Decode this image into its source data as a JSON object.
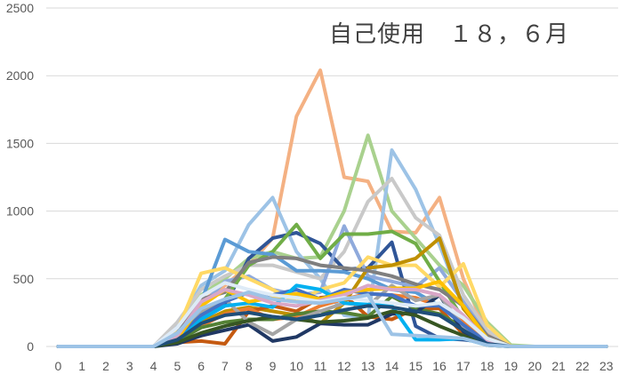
{
  "chart_data": {
    "type": "line",
    "title": "自己使用　１８，６月",
    "xlabel": "",
    "ylabel": "",
    "x": [
      0,
      1,
      2,
      3,
      4,
      5,
      6,
      7,
      8,
      9,
      10,
      11,
      12,
      13,
      14,
      15,
      16,
      17,
      18,
      19,
      20,
      21,
      22,
      23
    ],
    "ylim": [
      0,
      2500
    ],
    "yticks": [
      0,
      500,
      1000,
      1500,
      2000,
      2500
    ],
    "grid": "horizontal",
    "legend": "none",
    "series": [
      {
        "color": "#f4b183",
        "values": [
          0,
          0,
          0,
          0,
          0,
          120,
          330,
          450,
          600,
          800,
          1700,
          2040,
          1250,
          1220,
          850,
          840,
          1100,
          500,
          100,
          0,
          0,
          0,
          0,
          0
        ]
      },
      {
        "color": "#a9d18e",
        "values": [
          0,
          0,
          0,
          0,
          0,
          150,
          380,
          500,
          650,
          700,
          650,
          660,
          1000,
          1560,
          1000,
          800,
          600,
          450,
          180,
          10,
          0,
          0,
          0,
          0
        ]
      },
      {
        "color": "#9dc3e6",
        "values": [
          0,
          0,
          0,
          0,
          0,
          150,
          450,
          560,
          900,
          1100,
          700,
          500,
          230,
          210,
          1450,
          1160,
          750,
          300,
          60,
          0,
          0,
          0,
          0,
          0
        ]
      },
      {
        "color": "#c9c9c9",
        "values": [
          0,
          0,
          0,
          0,
          0,
          180,
          420,
          520,
          600,
          600,
          550,
          500,
          700,
          1070,
          1240,
          950,
          820,
          380,
          120,
          0,
          0,
          0,
          0,
          0
        ]
      },
      {
        "color": "#2f5597",
        "values": [
          0,
          0,
          0,
          0,
          0,
          50,
          200,
          300,
          650,
          800,
          840,
          760,
          570,
          580,
          770,
          150,
          60,
          50,
          30,
          0,
          0,
          0,
          0,
          0
        ]
      },
      {
        "color": "#8faadc",
        "values": [
          0,
          0,
          0,
          0,
          0,
          120,
          300,
          480,
          520,
          420,
          380,
          400,
          890,
          520,
          480,
          440,
          580,
          330,
          80,
          0,
          0,
          0,
          0,
          0
        ]
      },
      {
        "color": "#70ad47",
        "values": [
          0,
          0,
          0,
          0,
          0,
          90,
          250,
          350,
          600,
          700,
          900,
          650,
          830,
          830,
          850,
          760,
          480,
          200,
          40,
          0,
          0,
          0,
          0,
          0
        ]
      },
      {
        "color": "#5b9bd5",
        "values": [
          0,
          0,
          0,
          0,
          0,
          110,
          330,
          790,
          700,
          680,
          560,
          560,
          550,
          500,
          420,
          400,
          300,
          180,
          50,
          0,
          0,
          0,
          0,
          0
        ]
      },
      {
        "color": "#ffd966",
        "values": [
          0,
          0,
          0,
          0,
          0,
          120,
          540,
          580,
          500,
          420,
          330,
          420,
          470,
          660,
          600,
          600,
          440,
          610,
          160,
          0,
          0,
          0,
          0,
          0
        ]
      },
      {
        "color": "#bf9000",
        "values": [
          0,
          0,
          0,
          0,
          0,
          40,
          180,
          260,
          290,
          260,
          230,
          170,
          320,
          580,
          600,
          650,
          800,
          280,
          70,
          0,
          0,
          0,
          0,
          0
        ]
      },
      {
        "color": "#c55a11",
        "values": [
          0,
          0,
          0,
          0,
          0,
          30,
          40,
          20,
          260,
          300,
          260,
          360,
          380,
          220,
          200,
          280,
          280,
          90,
          20,
          0,
          0,
          0,
          0,
          0
        ]
      },
      {
        "color": "#ed7d31",
        "values": [
          0,
          0,
          0,
          0,
          0,
          60,
          150,
          240,
          280,
          200,
          220,
          300,
          350,
          390,
          380,
          360,
          300,
          180,
          50,
          0,
          0,
          0,
          0,
          0
        ]
      },
      {
        "color": "#548235",
        "values": [
          0,
          0,
          0,
          0,
          0,
          40,
          140,
          180,
          200,
          200,
          240,
          260,
          250,
          220,
          370,
          280,
          240,
          140,
          30,
          0,
          0,
          0,
          0,
          0
        ]
      },
      {
        "color": "#203864",
        "values": [
          0,
          0,
          0,
          0,
          0,
          20,
          80,
          120,
          160,
          40,
          70,
          170,
          160,
          160,
          240,
          250,
          380,
          110,
          20,
          0,
          0,
          0,
          0,
          0
        ]
      },
      {
        "color": "#7f7f7f",
        "values": [
          0,
          0,
          0,
          0,
          0,
          100,
          350,
          400,
          620,
          660,
          650,
          600,
          580,
          560,
          520,
          460,
          420,
          300,
          80,
          0,
          0,
          0,
          0,
          0
        ]
      },
      {
        "color": "#a5a5a5",
        "values": [
          0,
          0,
          0,
          0,
          0,
          90,
          260,
          350,
          180,
          90,
          200,
          260,
          320,
          300,
          450,
          340,
          380,
          150,
          40,
          0,
          0,
          0,
          0,
          0
        ]
      },
      {
        "color": "#4472c4",
        "values": [
          0,
          0,
          0,
          0,
          0,
          70,
          230,
          330,
          400,
          380,
          420,
          350,
          420,
          390,
          380,
          300,
          300,
          160,
          30,
          0,
          0,
          0,
          0,
          0
        ]
      },
      {
        "color": "#00b0f0",
        "values": [
          0,
          0,
          0,
          0,
          0,
          40,
          200,
          300,
          320,
          290,
          450,
          420,
          320,
          310,
          300,
          50,
          50,
          60,
          10,
          0,
          0,
          0,
          0,
          0
        ]
      },
      {
        "color": "#ffc000",
        "values": [
          0,
          0,
          0,
          0,
          0,
          60,
          300,
          420,
          330,
          360,
          390,
          350,
          400,
          420,
          430,
          430,
          480,
          300,
          60,
          0,
          0,
          0,
          0,
          0
        ]
      },
      {
        "color": "#d9a7c7",
        "values": [
          0,
          0,
          0,
          0,
          0,
          80,
          330,
          420,
          380,
          320,
          300,
          340,
          380,
          450,
          420,
          420,
          380,
          230,
          50,
          0,
          0,
          0,
          0,
          0
        ]
      },
      {
        "color": "#375623",
        "values": [
          0,
          0,
          0,
          0,
          0,
          30,
          100,
          150,
          190,
          220,
          200,
          180,
          190,
          210,
          260,
          230,
          150,
          80,
          10,
          0,
          0,
          0,
          0,
          0
        ]
      },
      {
        "color": "#deebf7",
        "values": [
          0,
          0,
          0,
          0,
          0,
          140,
          370,
          470,
          420,
          380,
          360,
          330,
          360,
          340,
          320,
          300,
          320,
          210,
          60,
          0,
          0,
          0,
          0,
          0
        ]
      },
      {
        "color": "#1f4e79",
        "values": [
          0,
          0,
          0,
          0,
          0,
          50,
          170,
          230,
          250,
          220,
          200,
          230,
          270,
          300,
          290,
          260,
          230,
          120,
          20,
          0,
          0,
          0,
          0,
          0
        ]
      },
      {
        "color": "#9dc3e6",
        "values": [
          0,
          0,
          0,
          0,
          0,
          100,
          280,
          350,
          400,
          350,
          330,
          320,
          350,
          380,
          90,
          80,
          70,
          60,
          10,
          0,
          0,
          0,
          0,
          0
        ]
      }
    ]
  }
}
